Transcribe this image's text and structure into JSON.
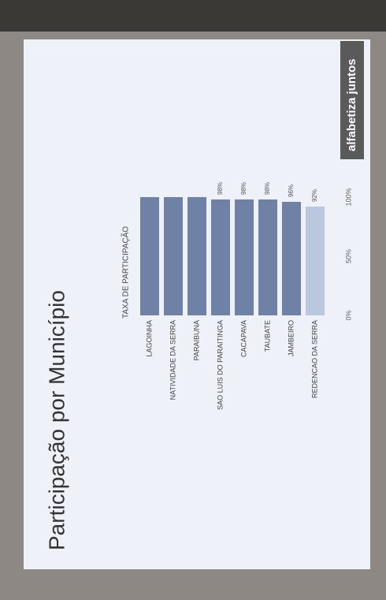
{
  "chart_data": {
    "type": "hbar",
    "title": "Participação por Município",
    "subtitle": "TAXA DE PARTICIPAÇÃO",
    "logo": "alfabetiza juntos",
    "categories": [
      "LAGOINHA",
      "NATIVIDADE DA SERRA",
      "PARAIBUNA",
      "SAO LUIS DO PARAITINGA",
      "CACAPAVA",
      "TAUBATE",
      "JAMBEIRO",
      "REDENCAO DA SERRA"
    ],
    "values": [
      100,
      100,
      100,
      98,
      98,
      98,
      96,
      92
    ],
    "value_labels": [
      null,
      null,
      null,
      "98%",
      "98%",
      "98%",
      "96%",
      "92%"
    ],
    "colors": [
      "#6f82a6",
      "#6f82a6",
      "#6f82a6",
      "#6f82a6",
      "#6f82a6",
      "#6f82a6",
      "#6f82a6",
      "#bac7de"
    ],
    "xlim": [
      0,
      100
    ],
    "xticks": [
      {
        "value": 0,
        "label": "0%"
      },
      {
        "value": 50,
        "label": "50%"
      },
      {
        "value": 100,
        "label": "100%"
      }
    ]
  }
}
